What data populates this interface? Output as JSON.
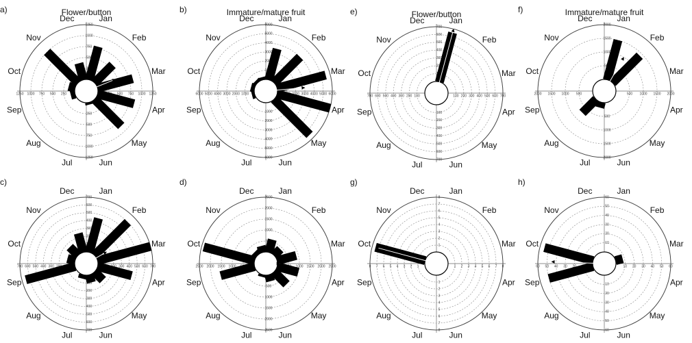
{
  "chart_data": [
    {
      "type": "rose",
      "label": "a)",
      "title": "Flower/button",
      "categories": [
        "Jan",
        "Feb",
        "Mar",
        "Apr",
        "May",
        "Jun",
        "Jul",
        "Aug",
        "Sep",
        "Oct",
        "Nov",
        "Dec"
      ],
      "values": [
        780,
        580,
        830,
        860,
        860,
        50,
        0,
        0,
        100,
        150,
        1000,
        390
      ],
      "rlim": [
        0,
        1250
      ],
      "rticks": [
        250,
        500,
        750,
        1000,
        1250
      ],
      "mean_vector": {
        "angle": 68,
        "value": 450
      },
      "color": "#000000"
    },
    {
      "type": "rose",
      "label": "b)",
      "title": "Immature/mature fruit",
      "categories": [
        "Jan",
        "Feb",
        "Mar",
        "Apr",
        "May",
        "Jun",
        "Jul",
        "Aug",
        "Sep",
        "Oct",
        "Nov",
        "Dec"
      ],
      "values": [
        3500,
        4000,
        5500,
        6000,
        5500,
        0,
        0,
        0,
        300,
        400,
        300,
        300
      ],
      "rlim": [
        0,
        6000
      ],
      "rticks": [
        1000,
        2000,
        3000,
        4000,
        5000,
        6000
      ],
      "mean_vector": {
        "angle": 85,
        "value": 3000
      },
      "color": "#000000"
    },
    {
      "type": "rose",
      "label": "c)",
      "categories": [
        "Jan",
        "Feb",
        "Mar",
        "Apr",
        "May",
        "Jun",
        "Jul",
        "Aug",
        "Sep",
        "Oct",
        "Nov",
        "Dec"
      ],
      "values": [
        450,
        600,
        700,
        450,
        150,
        100,
        50,
        0,
        650,
        100,
        150,
        250
      ],
      "rlim": [
        0,
        700
      ],
      "rticks": [
        100,
        200,
        300,
        400,
        500,
        600,
        700
      ],
      "mean_vector": {
        "angle": 60,
        "value": 150
      },
      "color": "#000000"
    },
    {
      "type": "rose",
      "label": "d)",
      "categories": [
        "Jan",
        "Feb",
        "Mar",
        "Apr",
        "May",
        "Jun",
        "Jul",
        "Aug",
        "Sep",
        "Oct",
        "Nov",
        "Dec"
      ],
      "values": [
        600,
        400,
        900,
        1000,
        800,
        300,
        100,
        0,
        1600,
        2400,
        200,
        300
      ],
      "rlim": [
        0,
        2500
      ],
      "rticks": [
        500,
        1000,
        1500,
        2000,
        2500
      ],
      "mean_vector": {
        "angle": 90,
        "value": 100
      },
      "color": "#000000"
    },
    {
      "type": "rose",
      "label": "e)",
      "title": "Flower/button",
      "categories": [
        "Jan",
        "Feb",
        "Mar",
        "Apr",
        "May",
        "Jun",
        "Jul",
        "Aug",
        "Sep",
        "Oct",
        "Nov",
        "Dec"
      ],
      "values": [
        650,
        0,
        0,
        0,
        0,
        0,
        0,
        0,
        0,
        0,
        0,
        0
      ],
      "rlim": [
        0,
        700
      ],
      "rticks": [
        100,
        200,
        300,
        400,
        500,
        600,
        700
      ],
      "mean_vector": {
        "angle": 15,
        "value": 700
      },
      "color": "#000000"
    },
    {
      "type": "rose",
      "label": "f)",
      "title": "Immature/mature fruit",
      "categories": [
        "Jan",
        "Feb",
        "Mar",
        "Apr",
        "May",
        "Jun",
        "Jul",
        "Aug",
        "Sep",
        "Oct",
        "Nov",
        "Dec"
      ],
      "values": [
        1500,
        1400,
        0,
        0,
        0,
        0,
        200,
        700,
        0,
        0,
        0,
        0
      ],
      "rlim": [
        0,
        2000
      ],
      "rticks": [
        500,
        1000,
        1500,
        2000
      ],
      "mean_vector": {
        "angle": 30,
        "value": 1000
      },
      "color": "#000000"
    },
    {
      "type": "rose",
      "label": "g)",
      "categories": [
        "Jan",
        "Feb",
        "Mar",
        "Apr",
        "May",
        "Jun",
        "Jul",
        "Aug",
        "Sep",
        "Oct",
        "Nov",
        "Dec"
      ],
      "values": [
        0,
        0,
        0,
        0,
        0,
        0,
        0,
        0,
        0,
        7.5,
        0,
        0
      ],
      "rlim": [
        0,
        8
      ],
      "rticks": [
        1,
        2,
        3,
        4,
        5,
        6,
        7,
        8
      ],
      "mean_vector": {
        "angle": 285,
        "value": 7.5
      },
      "color": "#000000"
    },
    {
      "type": "rose",
      "label": "h)",
      "categories": [
        "Jan",
        "Feb",
        "Mar",
        "Apr",
        "May",
        "Jun",
        "Jul",
        "Aug",
        "Sep",
        "Oct",
        "Nov",
        "Dec"
      ],
      "values": [
        0,
        0,
        8,
        0,
        0,
        0,
        0,
        0,
        50,
        55,
        0,
        0
      ],
      "rlim": [
        0,
        60
      ],
      "rticks": [
        10,
        20,
        30,
        40,
        50,
        60
      ],
      "mean_vector": {
        "angle": 272,
        "value": 45
      },
      "color": "#000000"
    }
  ]
}
